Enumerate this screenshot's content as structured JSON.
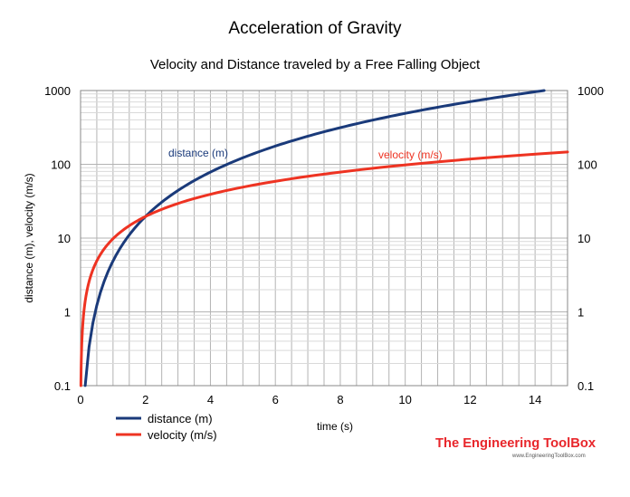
{
  "colors": {
    "distance": "#1a3a7a",
    "velocity": "#ee3322",
    "logo": "#e8262b",
    "grid": "#b3b3b3",
    "grid_minor": "#d9d9d9"
  },
  "logo": {
    "name": "The Engineering ToolBox",
    "url": "www.EngineeringToolBox.com"
  },
  "chart_data": {
    "type": "line",
    "title": "Acceleration of Gravity",
    "subtitle": "Velocity and Distance traveled by a Free Falling Object",
    "xlabel": "time (s)",
    "ylabel": "distance  (m),   velocity  (m/s)",
    "xlim": [
      0,
      15
    ],
    "ylim": [
      0.1,
      1000
    ],
    "yscale": "log",
    "grid": true,
    "legend_position": "bottom-left",
    "x_ticks": [
      "0",
      "2",
      "4",
      "6",
      "8",
      "10",
      "12",
      "14"
    ],
    "y_ticks": [
      "0.1",
      "1",
      "10",
      "100",
      "1000"
    ],
    "y2_ticks": [
      "0.1",
      "1",
      "10",
      "100",
      "1000"
    ],
    "series": [
      {
        "name": "distance (m)",
        "annotation": "distance (m)",
        "color": "#1a3a7a",
        "x": [
          0.143,
          0.2,
          0.3,
          0.5,
          0.75,
          1,
          1.25,
          1.5,
          2,
          2.5,
          3,
          4,
          5,
          6,
          7,
          8,
          9,
          10,
          11,
          12,
          13,
          14,
          14.28
        ],
        "y": [
          0.1,
          0.196,
          0.441,
          1.226,
          2.76,
          4.905,
          7.66,
          11.04,
          19.62,
          30.66,
          44.15,
          78.48,
          122.6,
          176.6,
          240.3,
          313.9,
          397.3,
          490.5,
          593.5,
          706.3,
          829.0,
          961.4,
          1000
        ]
      },
      {
        "name": "velocity (m/s)",
        "annotation": "velocity (m/s)",
        "color": "#ee3322",
        "x": [
          0.0102,
          0.02,
          0.05,
          0.1,
          0.2,
          0.3,
          0.5,
          0.75,
          1,
          1.5,
          2,
          3,
          4,
          5,
          6,
          7,
          8,
          9,
          10,
          11,
          12,
          13,
          14,
          15
        ],
        "y": [
          0.1,
          0.196,
          0.49,
          0.981,
          1.962,
          2.943,
          4.905,
          7.36,
          9.81,
          14.72,
          19.62,
          29.43,
          39.24,
          49.05,
          58.86,
          68.67,
          78.48,
          88.29,
          98.1,
          107.9,
          117.7,
          127.5,
          137.3,
          147.2
        ]
      }
    ]
  }
}
